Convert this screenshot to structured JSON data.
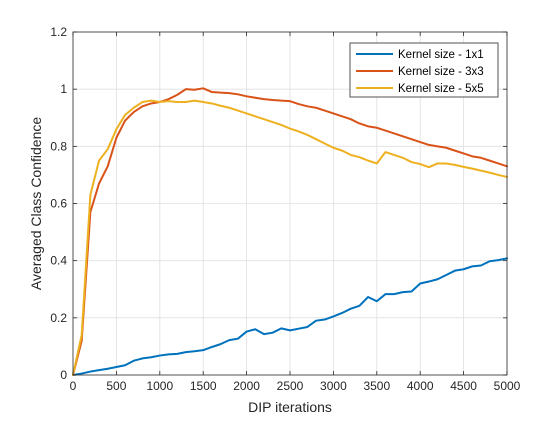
{
  "chart_data": {
    "type": "line",
    "title": "",
    "xlabel": "DIP iterations",
    "ylabel": "Averaged Class Confidence",
    "xlim": [
      0,
      5000
    ],
    "ylim": [
      0,
      1.2
    ],
    "xticks": [
      0,
      500,
      1000,
      1500,
      2000,
      2500,
      3000,
      3500,
      4000,
      4500,
      5000
    ],
    "yticks": [
      0,
      0.2,
      0.4,
      0.6,
      0.8,
      1,
      1.2
    ],
    "xtick_labels": [
      "0",
      "500",
      "1000",
      "1500",
      "2000",
      "2500",
      "3000",
      "3500",
      "4000",
      "4500",
      "5000"
    ],
    "ytick_labels": [
      "0",
      "0.2",
      "0.4",
      "0.6",
      "0.8",
      "1",
      "1.2"
    ],
    "grid": true,
    "legend_position": "top-right",
    "series": [
      {
        "name": "Kernel size - 1x1",
        "color": "#0072BD",
        "x": [
          0,
          100,
          200,
          300,
          400,
          500,
          600,
          700,
          800,
          900,
          1000,
          1100,
          1200,
          1300,
          1400,
          1500,
          1600,
          1700,
          1800,
          1900,
          2000,
          2100,
          2200,
          2300,
          2400,
          2500,
          2600,
          2700,
          2800,
          2900,
          3000,
          3100,
          3200,
          3300,
          3400,
          3500,
          3600,
          3700,
          3800,
          3900,
          4000,
          4100,
          4200,
          4300,
          4400,
          4500,
          4600,
          4700,
          4800,
          4900,
          5000
        ],
        "y": [
          0.0,
          0.005,
          0.012,
          0.017,
          0.022,
          0.028,
          0.034,
          0.05,
          0.058,
          0.062,
          0.068,
          0.072,
          0.074,
          0.08,
          0.083,
          0.087,
          0.098,
          0.108,
          0.122,
          0.127,
          0.152,
          0.16,
          0.143,
          0.148,
          0.163,
          0.156,
          0.162,
          0.168,
          0.19,
          0.194,
          0.205,
          0.217,
          0.232,
          0.242,
          0.273,
          0.258,
          0.283,
          0.283,
          0.29,
          0.292,
          0.32,
          0.327,
          0.335,
          0.35,
          0.365,
          0.37,
          0.38,
          0.383,
          0.398,
          0.402,
          0.408
        ]
      },
      {
        "name": "Kernel size - 3x3",
        "color": "#D95319",
        "x": [
          0,
          100,
          200,
          300,
          400,
          500,
          600,
          700,
          800,
          900,
          1000,
          1100,
          1200,
          1300,
          1400,
          1500,
          1600,
          1700,
          1800,
          1900,
          2000,
          2100,
          2200,
          2300,
          2400,
          2500,
          2600,
          2700,
          2800,
          2900,
          3000,
          3100,
          3200,
          3300,
          3400,
          3500,
          3600,
          3700,
          3800,
          3900,
          4000,
          4100,
          4200,
          4300,
          4400,
          4500,
          4600,
          4700,
          4800,
          4900,
          5000
        ],
        "y": [
          0.0,
          0.12,
          0.57,
          0.67,
          0.73,
          0.83,
          0.89,
          0.92,
          0.94,
          0.95,
          0.955,
          0.965,
          0.98,
          1.0,
          0.998,
          1.003,
          0.99,
          0.988,
          0.986,
          0.982,
          0.975,
          0.97,
          0.965,
          0.962,
          0.96,
          0.958,
          0.948,
          0.94,
          0.935,
          0.925,
          0.915,
          0.905,
          0.895,
          0.88,
          0.87,
          0.865,
          0.855,
          0.845,
          0.835,
          0.825,
          0.815,
          0.805,
          0.8,
          0.795,
          0.785,
          0.775,
          0.765,
          0.76,
          0.75,
          0.74,
          0.73
        ]
      },
      {
        "name": "Kernel size - 5x5",
        "color": "#EDB120",
        "x": [
          0,
          100,
          200,
          300,
          400,
          500,
          600,
          700,
          800,
          900,
          1000,
          1100,
          1200,
          1300,
          1400,
          1500,
          1600,
          1700,
          1800,
          1900,
          2000,
          2100,
          2200,
          2300,
          2400,
          2500,
          2600,
          2700,
          2800,
          2900,
          3000,
          3100,
          3200,
          3300,
          3400,
          3500,
          3600,
          3700,
          3800,
          3900,
          4000,
          4100,
          4200,
          4300,
          4400,
          4500,
          4600,
          4700,
          4800,
          4900,
          5000
        ],
        "y": [
          0.0,
          0.14,
          0.63,
          0.75,
          0.79,
          0.86,
          0.91,
          0.935,
          0.955,
          0.96,
          0.955,
          0.958,
          0.955,
          0.955,
          0.96,
          0.955,
          0.95,
          0.942,
          0.935,
          0.925,
          0.915,
          0.905,
          0.895,
          0.885,
          0.875,
          0.862,
          0.852,
          0.84,
          0.825,
          0.81,
          0.795,
          0.785,
          0.77,
          0.762,
          0.75,
          0.74,
          0.78,
          0.77,
          0.76,
          0.745,
          0.738,
          0.727,
          0.74,
          0.74,
          0.735,
          0.728,
          0.722,
          0.715,
          0.708,
          0.7,
          0.693
        ]
      }
    ]
  }
}
